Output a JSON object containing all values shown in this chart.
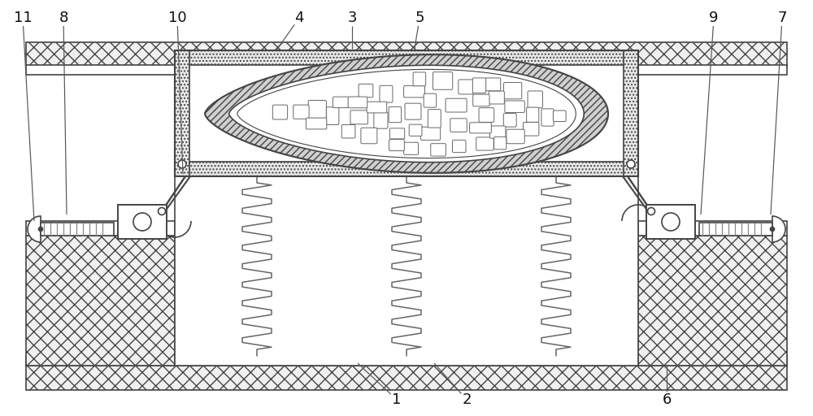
{
  "fig_width": 10.0,
  "fig_height": 5.12,
  "dpi": 100,
  "bg": "#ffffff",
  "lc": "#444444",
  "lw": 1.2,
  "gray_light": "#d8d8d8",
  "gray_mid": "#bbbbbb"
}
